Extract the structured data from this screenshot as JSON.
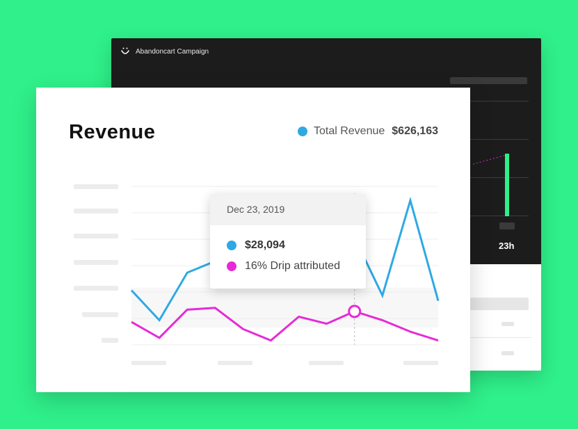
{
  "back_panel": {
    "title": "Abandoncart Campaign",
    "icon": "smile-icon",
    "axis_label": "23h",
    "accent_color": "#2ff08a"
  },
  "chart_data": {
    "type": "line",
    "title": "Revenue",
    "x": [
      0,
      1,
      2,
      3,
      4,
      5,
      6,
      7,
      8,
      9,
      10,
      11
    ],
    "series": [
      {
        "name": "Total Revenue",
        "color": "#2ea9e4",
        "values": [
          62,
          28,
          82,
          95,
          100,
          96,
          90,
          100,
          122,
          56,
          164,
          50
        ]
      },
      {
        "name": "16% Drip attributed",
        "color": "#e62ad8",
        "values": [
          26,
          8,
          40,
          42,
          18,
          5,
          32,
          24,
          38,
          28,
          15,
          5
        ]
      }
    ],
    "ylim": [
      0,
      180
    ],
    "grid": true,
    "highlight_index": 8,
    "legend": {
      "label": "Total Revenue",
      "value": "$626,163",
      "placement": "top-right"
    },
    "tooltip": {
      "date": "Dec 23, 2019",
      "revenue": "$28,094",
      "drip": "16% Drip attributed"
    }
  }
}
